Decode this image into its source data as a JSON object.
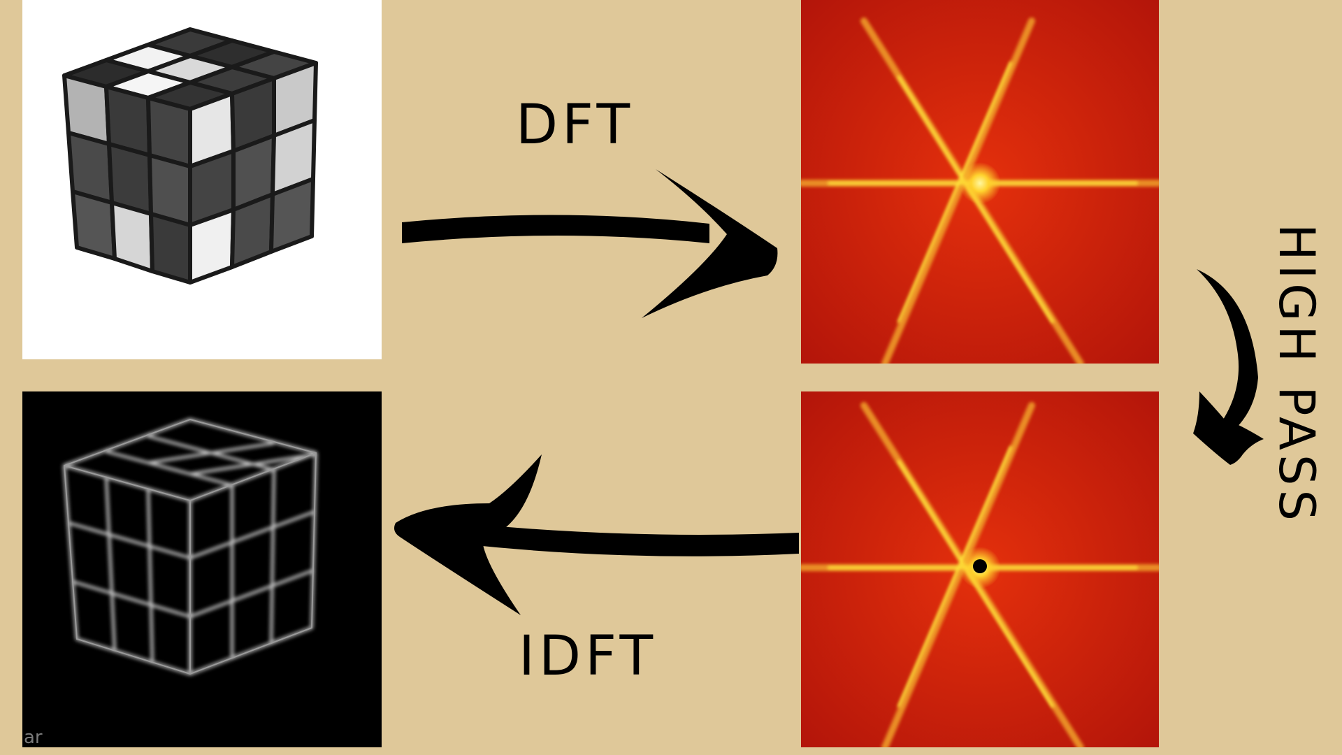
{
  "labels": {
    "forward": "DFT",
    "inverse": "IDFT",
    "filter": "HIGH PASS"
  },
  "watermark": "ar",
  "colors": {
    "background": "#dfc899",
    "spectrum_red": "#d11e08",
    "spectrum_yellow": "#ffe53a",
    "arrow": "#000000"
  },
  "panels": [
    {
      "name": "original-image",
      "description_icon": "rubiks-cube"
    },
    {
      "name": "frequency-spectrum",
      "description_icon": "star-spectrum"
    },
    {
      "name": "high-pass-spectrum",
      "description_icon": "star-spectrum-masked"
    },
    {
      "name": "filtered-image",
      "description_icon": "edge-cube"
    }
  ]
}
